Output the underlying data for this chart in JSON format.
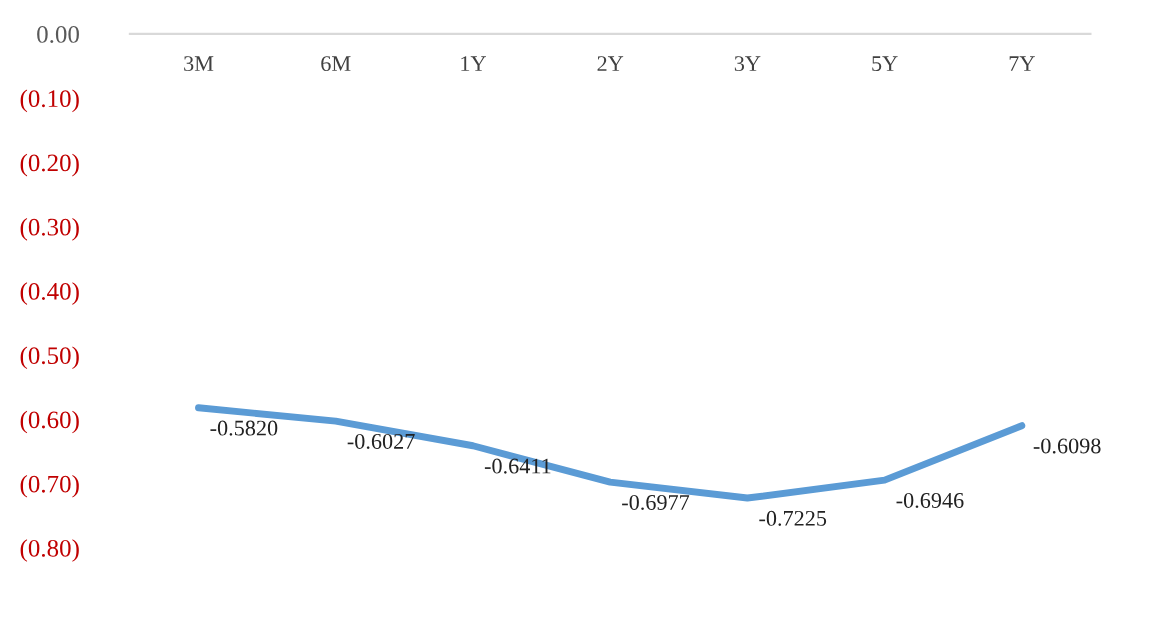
{
  "chart_data": {
    "type": "line",
    "categories": [
      "3M",
      "6M",
      "1Y",
      "2Y",
      "3Y",
      "5Y",
      "7Y"
    ],
    "series": [
      {
        "color": "#5b9bd5",
        "values": [
          -0.582,
          -0.6027,
          -0.6411,
          -0.6977,
          -0.7225,
          -0.6946,
          -0.6098
        ],
        "value_labels": [
          "-0.5820",
          "-0.6027",
          "-0.6411",
          "-0.6977",
          "-0.7225",
          "-0.6946",
          "-0.6098"
        ]
      }
    ],
    "ylim": [
      -0.8,
      0
    ],
    "yticks": [
      {
        "value": 0,
        "label": "0.00"
      },
      {
        "value": -0.1,
        "label": "(0.10)"
      },
      {
        "value": -0.2,
        "label": "(0.20)"
      },
      {
        "value": -0.3,
        "label": "(0.30)"
      },
      {
        "value": -0.4,
        "label": "(0.40)"
      },
      {
        "value": -0.5,
        "label": "(0.50)"
      },
      {
        "value": -0.6,
        "label": "(0.60)"
      },
      {
        "value": -0.7,
        "label": "(0.70)"
      },
      {
        "value": -0.8,
        "label": "(0.80)"
      }
    ],
    "grid": false,
    "legend": false,
    "marker": "none",
    "line_style": "solid"
  }
}
